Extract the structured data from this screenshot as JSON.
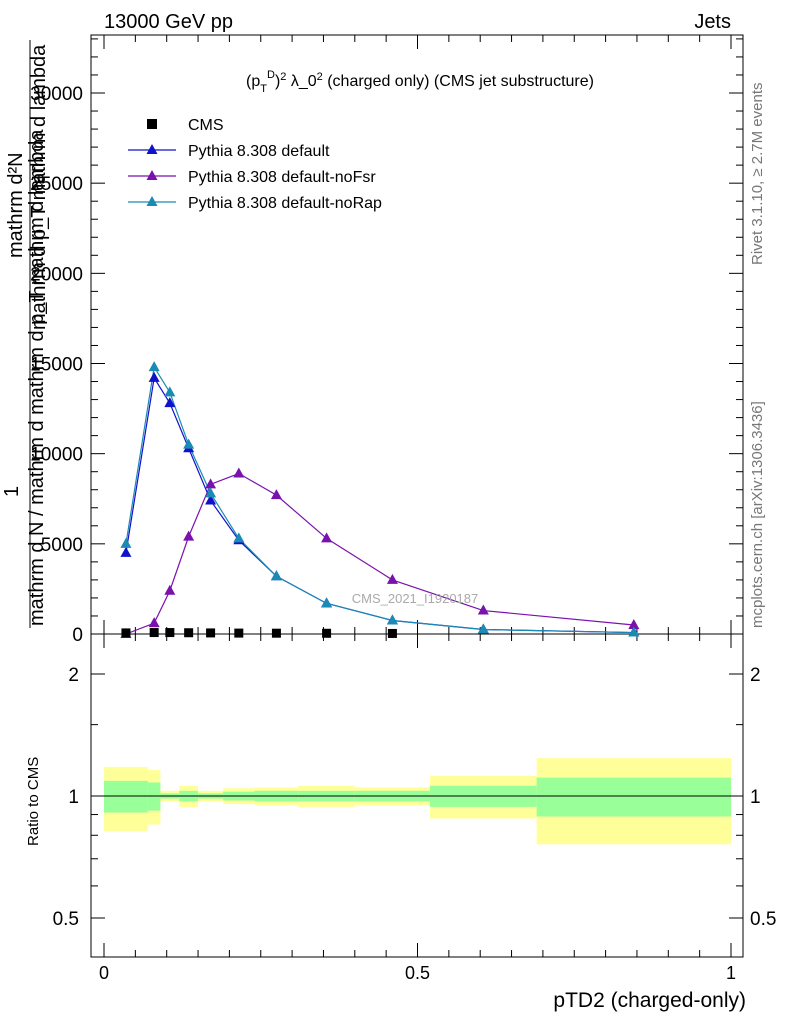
{
  "header": {
    "left": "13000 GeV pp",
    "right": "Jets"
  },
  "side_labels": {
    "rivet": "Rivet 3.1.10, ≥ 2.7M events",
    "mcplots": "mcplots.cern.ch [arXiv:1306.3436]"
  },
  "chart_data": {
    "type": "line",
    "title": "(pTD)2 λ_0 2 (charged only) (CMS jet substructure)",
    "watermark": "CMS_2021_I1920187",
    "xlabel": "pTD2 (charged-only)",
    "ylabel_top_numerator": "mathrm d²N",
    "ylabel_top_denominator": "mathrm d p_T mathrm d lambda",
    "ylabel_prefix": "1",
    "ylabel_bottom": "mathrm d N / mathrm d mathrm d p_T mathrm d lambda",
    "ratio_ylabel": "Ratio to CMS",
    "xlim": [
      0,
      1
    ],
    "ylim": [
      0,
      33000
    ],
    "ratio_ylim": [
      0.45,
      2.3
    ],
    "x_ticks": [
      {
        "value": 0,
        "label": "0"
      },
      {
        "value": 0.5,
        "label": "0.5"
      },
      {
        "value": 1,
        "label": "1"
      }
    ],
    "y_ticks": [
      {
        "value": 0,
        "label": "0"
      },
      {
        "value": 5000,
        "label": "5000"
      },
      {
        "value": 10000,
        "label": "10000"
      },
      {
        "value": 15000,
        "label": "15000"
      },
      {
        "value": 20000,
        "label": "20000"
      },
      {
        "value": 25000,
        "label": "25000"
      },
      {
        "value": 30000,
        "label": "30000"
      }
    ],
    "ratio_ticks": [
      {
        "value": 0.5,
        "label": "0.5"
      },
      {
        "value": 1,
        "label": "1"
      },
      {
        "value": 2,
        "label": "2"
      }
    ],
    "legend_position": "top-left",
    "cms": {
      "name": "CMS",
      "color": "#000000",
      "x": [
        0.035,
        0.08,
        0.105,
        0.135,
        0.17,
        0.215,
        0.275,
        0.355,
        0.46
      ],
      "y": [
        60,
        80,
        80,
        70,
        60,
        50,
        45,
        40,
        30
      ]
    },
    "series": [
      {
        "name": "Pythia 8.308 default",
        "color": "#1111cc",
        "x": [
          0.035,
          0.08,
          0.105,
          0.135,
          0.17,
          0.215,
          0.275,
          0.355,
          0.46,
          0.605,
          0.845
        ],
        "y": [
          4500,
          14200,
          12800,
          10300,
          7400,
          5200,
          3200,
          1700,
          750,
          250,
          80
        ]
      },
      {
        "name": "Pythia 8.308 default-noFsr",
        "color": "#7b11ad",
        "x": [
          0.035,
          0.08,
          0.105,
          0.135,
          0.17,
          0.215,
          0.275,
          0.355,
          0.46,
          0.605,
          0.845
        ],
        "y": [
          0,
          600,
          2400,
          5400,
          8300,
          8900,
          7700,
          5300,
          3000,
          1300,
          500
        ]
      },
      {
        "name": "Pythia 8.308 default-noRap",
        "color": "#1a8bb5",
        "x": [
          0.035,
          0.08,
          0.105,
          0.135,
          0.17,
          0.215,
          0.275,
          0.355,
          0.46,
          0.605,
          0.845
        ],
        "y": [
          5000,
          14800,
          13400,
          10500,
          7800,
          5300,
          3200,
          1700,
          750,
          250,
          80
        ]
      }
    ],
    "ratio_bands": [
      {
        "x0": 0.0,
        "x1": 0.07,
        "y_lo": 0.82,
        "y_hi": 1.18,
        "g_lo": 0.91,
        "g_hi": 1.09
      },
      {
        "x0": 0.07,
        "x1": 0.09,
        "y_lo": 0.85,
        "y_hi": 1.16,
        "g_lo": 0.92,
        "g_hi": 1.08
      },
      {
        "x0": 0.09,
        "x1": 0.12,
        "y_lo": 0.97,
        "y_hi": 1.03,
        "g_lo": 0.985,
        "g_hi": 1.015
      },
      {
        "x0": 0.12,
        "x1": 0.15,
        "y_lo": 0.94,
        "y_hi": 1.06,
        "g_lo": 0.97,
        "g_hi": 1.03
      },
      {
        "x0": 0.15,
        "x1": 0.19,
        "y_lo": 0.97,
        "y_hi": 1.03,
        "g_lo": 0.985,
        "g_hi": 1.015
      },
      {
        "x0": 0.19,
        "x1": 0.24,
        "y_lo": 0.955,
        "y_hi": 1.045,
        "g_lo": 0.975,
        "g_hi": 1.025
      },
      {
        "x0": 0.24,
        "x1": 0.31,
        "y_lo": 0.95,
        "y_hi": 1.05,
        "g_lo": 0.97,
        "g_hi": 1.03
      },
      {
        "x0": 0.31,
        "x1": 0.4,
        "y_lo": 0.94,
        "y_hi": 1.06,
        "g_lo": 0.97,
        "g_hi": 1.03
      },
      {
        "x0": 0.4,
        "x1": 0.52,
        "y_lo": 0.95,
        "y_hi": 1.05,
        "g_lo": 0.97,
        "g_hi": 1.03
      },
      {
        "x0": 0.52,
        "x1": 0.69,
        "y_lo": 0.88,
        "y_hi": 1.12,
        "g_lo": 0.94,
        "g_hi": 1.06
      },
      {
        "x0": 0.69,
        "x1": 1.0,
        "y_lo": 0.76,
        "y_hi": 1.24,
        "g_lo": 0.89,
        "g_hi": 1.11
      }
    ],
    "band_colors": {
      "outer": "#ffff99",
      "inner": "#99ff99"
    }
  }
}
